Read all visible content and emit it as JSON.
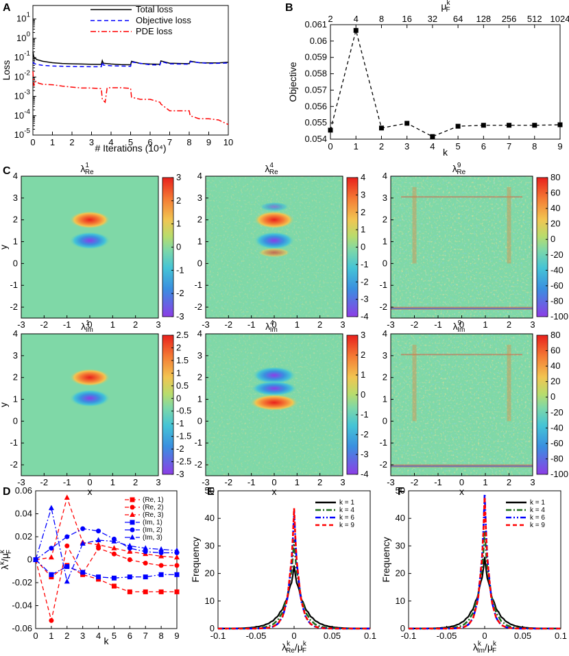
{
  "colors": {
    "black": "#000000",
    "blue": "#0000ff",
    "red": "#ff0000",
    "green": "#1c6b1c",
    "field": "#7fd8a7"
  },
  "panels": {
    "A": {
      "letter": "A"
    },
    "B": {
      "letter": "B"
    },
    "C": {
      "letter": "C"
    },
    "D": {
      "letter": "D"
    },
    "E": {
      "letter": "E"
    },
    "F": {
      "letter": "F"
    }
  },
  "chart_data": [
    {
      "panel": "A",
      "type": "line",
      "xlabel": "# Iterations (10⁴)",
      "ylabel": "Loss",
      "xlim": [
        0,
        10
      ],
      "ylim": [
        1e-05,
        50
      ],
      "yscale": "log",
      "xticks": [
        "0",
        "1",
        "2",
        "3",
        "4",
        "5",
        "6",
        "7",
        "8",
        "9",
        "10"
      ],
      "yticks": [
        "10⁻⁵",
        "10⁻⁴",
        "10⁻³",
        "10⁻²",
        "10⁻¹",
        "10⁰",
        "10¹"
      ],
      "legend_position": "top-right",
      "series": [
        {
          "name": "Total loss",
          "color": "#000000",
          "style": "solid",
          "x": [
            0,
            0.05,
            0.2,
            0.5,
            1,
            1.5,
            2,
            2.5,
            3,
            3.5,
            3.55,
            3.6,
            4,
            4.5,
            5,
            5.05,
            5.5,
            6,
            6.5,
            6.55,
            7,
            7.5,
            8,
            8.05,
            8.5,
            9,
            9.5,
            10
          ],
          "y": [
            0.2,
            0.11,
            0.08,
            0.065,
            0.055,
            0.05,
            0.048,
            0.047,
            0.046,
            0.045,
            0.07,
            0.052,
            0.047,
            0.044,
            0.043,
            0.065,
            0.05,
            0.047,
            0.046,
            0.068,
            0.052,
            0.05,
            0.049,
            0.066,
            0.055,
            0.054,
            0.054,
            0.058
          ]
        },
        {
          "name": "Objective loss",
          "color": "#0000ff",
          "style": "dashed",
          "x": [
            0,
            0.05,
            0.2,
            0.5,
            1,
            2,
            3,
            3.5,
            3.55,
            3.6,
            4,
            5,
            5.05,
            6,
            6.5,
            6.55,
            7,
            8,
            8.05,
            9,
            10
          ],
          "y": [
            0.06,
            0.05,
            0.045,
            0.04,
            0.037,
            0.035,
            0.034,
            0.034,
            0.06,
            0.042,
            0.038,
            0.036,
            0.06,
            0.043,
            0.042,
            0.063,
            0.048,
            0.046,
            0.062,
            0.05,
            0.053
          ]
        },
        {
          "name": "PDE loss",
          "color": "#ff0000",
          "style": "dashdot",
          "x": [
            0,
            0.05,
            0.15,
            0.3,
            0.5,
            1,
            1.5,
            2,
            2.5,
            3,
            3.5,
            3.55,
            3.7,
            3.8,
            4,
            4.5,
            5,
            5.05,
            5.5,
            6,
            6.5,
            6.55,
            7,
            7.5,
            8,
            8.05,
            8.5,
            9,
            9.5,
            10
          ],
          "y": [
            0.02,
            0.0035,
            0.006,
            0.0048,
            0.0042,
            0.004,
            0.0034,
            0.003,
            0.0027,
            0.0027,
            0.0025,
            0.0007,
            0.0005,
            0.0028,
            0.0028,
            0.0028,
            0.0026,
            0.0009,
            0.0007,
            0.0007,
            0.0005,
            0.0004,
            0.00018,
            0.00018,
            0.00018,
            0.0001,
            7e-05,
            7e-05,
            6e-05,
            3.5e-05
          ]
        }
      ]
    },
    {
      "panel": "B",
      "type": "line",
      "xlabel": "k",
      "ylabel": "Objective",
      "x2label": "μᵏᵢ",
      "x2label_text": "μ",
      "x2label_sup": "k",
      "x2label_sub": "F",
      "xlim": [
        0,
        9
      ],
      "ylim": [
        0.054,
        0.061
      ],
      "xticks": [
        "0",
        "1",
        "2",
        "3",
        "4",
        "5",
        "6",
        "7",
        "8",
        "9"
      ],
      "x2ticks": [
        "2",
        "4",
        "8",
        "16",
        "32",
        "64",
        "128",
        "256",
        "512",
        "1024"
      ],
      "yticks": [
        "0.054",
        "0.055",
        "0.056",
        "0.057",
        "0.058",
        "0.059",
        "0.06",
        "0.061"
      ],
      "series": [
        {
          "name": "",
          "color": "#000000",
          "style": "dashed",
          "marker": "square",
          "x": [
            0,
            1,
            2,
            3,
            4,
            5,
            6,
            7,
            8,
            9
          ],
          "y": [
            0.05455,
            0.06065,
            0.05468,
            0.05497,
            0.05416,
            0.05479,
            0.05485,
            0.05485,
            0.05485,
            0.05488
          ]
        }
      ]
    },
    {
      "panel": "C",
      "type": "heatmap",
      "xlabel": "x",
      "ylabel": "y",
      "xlim": [
        -3,
        3
      ],
      "ylim": [
        -2.5,
        4
      ],
      "xticks": [
        "-3",
        "-2",
        "-1",
        "0",
        "1",
        "2",
        "3"
      ],
      "yticks": [
        "-2",
        "-1",
        "0",
        "1",
        "2",
        "3",
        "4"
      ],
      "maps": [
        {
          "title": "λ",
          "sup": "1",
          "sub": "Re",
          "clim": [
            -3,
            3
          ],
          "cticks": [
            "3",
            "2",
            "1",
            "0",
            "-1",
            "-2",
            "-3"
          ],
          "pattern": "dipole-up"
        },
        {
          "title": "λ",
          "sup": "4",
          "sub": "Re",
          "clim": [
            -4,
            4
          ],
          "cticks": [
            "4",
            "3",
            "2",
            "1",
            "0",
            "-1",
            "-2",
            "-3",
            "-4"
          ],
          "pattern": "dipole-up-noisy"
        },
        {
          "title": "λ",
          "sup": "9",
          "sub": "Re",
          "clim": [
            -100,
            80
          ],
          "cticks": [
            "80",
            "60",
            "40",
            "20",
            "0",
            "-20",
            "-40",
            "-60",
            "-80",
            "-100"
          ],
          "pattern": "noise-bands"
        },
        {
          "title": "λ",
          "sup": "1",
          "sub": "Im",
          "clim": [
            -3,
            2.5
          ],
          "cticks": [
            "2.5",
            "2",
            "1.5",
            "1",
            "0.5",
            "0",
            "-0.5",
            "-1",
            "-1.5",
            "-2",
            "-2.5",
            "-3"
          ],
          "pattern": "dipole-up"
        },
        {
          "title": "λ",
          "sup": "4",
          "sub": "Im",
          "clim": [
            -4,
            3
          ],
          "cticks": [
            "3",
            "2",
            "1",
            "0",
            "-1",
            "-2",
            "-3",
            "-4"
          ],
          "pattern": "dipole-down-noisy"
        },
        {
          "title": "λ",
          "sup": "9",
          "sub": "Im",
          "clim": [
            -100,
            80
          ],
          "cticks": [
            "80",
            "60",
            "40",
            "20",
            "0",
            "-20",
            "-40",
            "-60",
            "-80",
            "-100"
          ],
          "pattern": "noise-bands"
        }
      ]
    },
    {
      "panel": "D",
      "type": "line",
      "xlabel": "k",
      "ylabel_text": "λ",
      "ylabel_parts": [
        "k",
        "/μ",
        "k",
        "F"
      ],
      "xlim": [
        0,
        9
      ],
      "ylim": [
        -0.06,
        0.06
      ],
      "xticks": [
        "0",
        "1",
        "2",
        "3",
        "4",
        "5",
        "6",
        "7",
        "8",
        "9"
      ],
      "yticks": [
        "-0.06",
        "-0.04",
        "-0.02",
        "0",
        "0.02",
        "0.04",
        "0.06"
      ],
      "legend_position": "top-right",
      "series": [
        {
          "name": "(Re, 1)",
          "color": "#ff0000",
          "style": "dashed",
          "marker": "square",
          "y": [
            0,
            -0.015,
            -0.005,
            -0.013,
            -0.017,
            -0.023,
            -0.028,
            -0.028,
            -0.028,
            -0.028
          ]
        },
        {
          "name": "(Re, 2)",
          "color": "#ff0000",
          "style": "dashed",
          "marker": "circle",
          "y": [
            0,
            -0.053,
            0.012,
            -0.012,
            0.01,
            0.005,
            0.0,
            -0.003,
            -0.005,
            -0.005
          ]
        },
        {
          "name": "(Re, 3)",
          "color": "#ff0000",
          "style": "dashed",
          "marker": "triangle",
          "y": [
            0,
            0.002,
            0.054,
            0.015,
            0.013,
            0.01,
            0.007,
            0.005,
            0.003,
            0.002
          ]
        },
        {
          "name": "(Im, 1)",
          "color": "#0000ff",
          "style": "dashdot",
          "marker": "square",
          "y": [
            0,
            -0.013,
            -0.006,
            -0.011,
            -0.015,
            -0.016,
            -0.015,
            -0.015,
            -0.013,
            -0.013
          ]
        },
        {
          "name": "(Im, 2)",
          "color": "#0000ff",
          "style": "dashdot",
          "marker": "circle",
          "y": [
            0,
            0.01,
            0.02,
            0.027,
            0.025,
            0.018,
            0.01,
            0.007,
            0.006,
            0.006
          ]
        },
        {
          "name": "(Im, 3)",
          "color": "#0000ff",
          "style": "dashdot",
          "marker": "triangle",
          "y": [
            0,
            0.045,
            -0.019,
            0.014,
            0.017,
            0.016,
            0.012,
            0.01,
            0.009,
            0.008
          ]
        }
      ]
    },
    {
      "panel": "E",
      "type": "line",
      "xlabel_text": "λ",
      "xlabel_parts": [
        "k",
        "Re",
        "/μ",
        "k",
        "F"
      ],
      "ylabel": "Frequency",
      "xlim": [
        -0.1,
        0.1
      ],
      "ylim": [
        0,
        50
      ],
      "xticks": [
        "-0.1",
        "-0.05",
        "0",
        "0.05",
        "0.1"
      ],
      "yticks": [
        "0",
        "10",
        "20",
        "30",
        "40",
        "50"
      ],
      "legend_position": "top-right",
      "series": [
        {
          "name": "k = 1",
          "color": "#000000",
          "style": "solid",
          "peak": 22,
          "width": 0.022
        },
        {
          "name": "k = 4",
          "color": "#1c6b1c",
          "style": "dashdot",
          "peak": 31,
          "width": 0.015
        },
        {
          "name": "k = 6",
          "color": "#0000ff",
          "style": "dashdotdot",
          "peak": 41,
          "width": 0.011
        },
        {
          "name": "k = 9",
          "color": "#ff0000",
          "style": "dashed",
          "peak": 42,
          "width": 0.011
        }
      ]
    },
    {
      "panel": "F",
      "type": "line",
      "xlabel_text": "λ",
      "xlabel_parts": [
        "k",
        "Im",
        "/μ",
        "k",
        "F"
      ],
      "ylabel": "Frequency",
      "xlim": [
        -0.1,
        0.1
      ],
      "ylim": [
        0,
        50
      ],
      "xticks": [
        "-0.1",
        "-0.05",
        "0",
        "0.05",
        "0.1"
      ],
      "yticks": [
        "0",
        "10",
        "20",
        "30",
        "40",
        "50"
      ],
      "legend_position": "top-right",
      "series": [
        {
          "name": "k = 1",
          "color": "#000000",
          "style": "solid",
          "peak": 25,
          "width": 0.02
        },
        {
          "name": "k = 4",
          "color": "#1c6b1c",
          "style": "dashdot",
          "peak": 34,
          "width": 0.014
        },
        {
          "name": "k = 6",
          "color": "#0000ff",
          "style": "dashdotdot",
          "peak": 47,
          "width": 0.01
        },
        {
          "name": "k = 9",
          "color": "#ff0000",
          "style": "dashed",
          "peak": 46,
          "width": 0.01
        }
      ]
    }
  ]
}
